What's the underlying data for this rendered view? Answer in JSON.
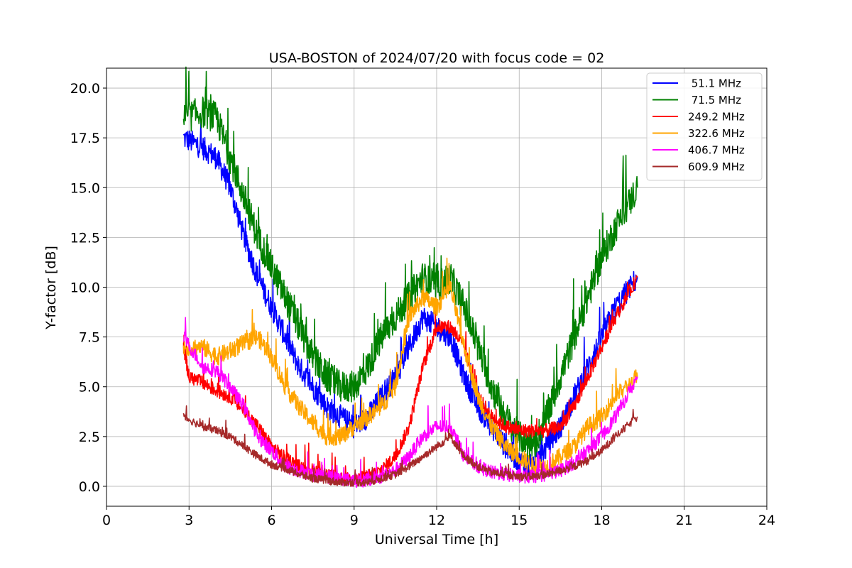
{
  "chart_data": {
    "type": "line",
    "title": "USA-BOSTON of 2024/07/20 with focus code = 02",
    "xlabel": "Universal Time [h]",
    "ylabel": "Y-factor [dB]",
    "xlim": [
      0,
      24
    ],
    "ylim": [
      -1,
      21
    ],
    "xticks": [
      0,
      3,
      6,
      9,
      12,
      15,
      18,
      21,
      24
    ],
    "xtick_labels": [
      "0",
      "3",
      "6",
      "9",
      "12",
      "15",
      "18",
      "21",
      "24"
    ],
    "yticks": [
      0,
      2.5,
      5,
      7.5,
      10,
      12.5,
      15,
      17.5,
      20
    ],
    "ytick_labels": [
      "0.0",
      "2.5",
      "5.0",
      "7.5",
      "10.0",
      "12.5",
      "15.0",
      "17.5",
      "20.0"
    ],
    "grid": true,
    "legend_position": "top-right",
    "series": [
      {
        "name": " 51.1 MHz",
        "color": "#0000ff",
        "noise": 0.6,
        "x": [
          2.8,
          3.5,
          4.0,
          4.5,
          5.0,
          5.5,
          6.0,
          6.5,
          7.0,
          7.5,
          8.0,
          8.5,
          9.0,
          9.5,
          10.0,
          10.5,
          11.0,
          11.5,
          12.0,
          12.5,
          13.0,
          13.5,
          14.0,
          14.5,
          15.0,
          15.5,
          16.0,
          16.5,
          17.0,
          17.5,
          18.0,
          18.5,
          19.3
        ],
        "y": [
          17.5,
          17.0,
          16.5,
          15.0,
          12.5,
          10.5,
          9.0,
          7.5,
          6.0,
          5.0,
          4.0,
          3.5,
          3.0,
          3.5,
          4.5,
          5.5,
          7.0,
          8.5,
          8.0,
          7.5,
          5.5,
          4.0,
          3.0,
          2.0,
          1.2,
          1.0,
          2.0,
          3.0,
          4.5,
          6.0,
          7.5,
          9.0,
          10.5
        ]
      },
      {
        "name": " 71.5 MHz",
        "color": "#008000",
        "noise": 0.8,
        "x": [
          2.8,
          3.5,
          4.0,
          4.5,
          5.0,
          5.5,
          6.0,
          6.5,
          7.0,
          7.5,
          8.0,
          8.5,
          9.0,
          9.5,
          10.0,
          10.5,
          11.0,
          11.5,
          12.0,
          12.5,
          13.0,
          13.5,
          14.0,
          14.5,
          15.0,
          15.5,
          16.0,
          16.5,
          17.0,
          17.5,
          18.0,
          18.5,
          19.3
        ],
        "y": [
          18.5,
          18.8,
          18.5,
          16.5,
          14.5,
          12.5,
          11.0,
          9.5,
          8.0,
          6.5,
          5.5,
          5.0,
          5.0,
          6.0,
          7.5,
          8.5,
          9.5,
          10.5,
          10.0,
          10.5,
          9.0,
          7.0,
          5.0,
          3.5,
          2.5,
          2.0,
          3.5,
          5.5,
          7.5,
          9.5,
          11.5,
          13.0,
          15.0
        ]
      },
      {
        "name": "249.2 MHz",
        "color": "#ff0000",
        "noise": 0.35,
        "x": [
          2.8,
          3.0,
          3.5,
          4.0,
          4.5,
          5.0,
          5.5,
          6.0,
          6.5,
          7.0,
          7.5,
          8.0,
          8.5,
          9.0,
          9.5,
          10.0,
          10.5,
          11.0,
          11.5,
          12.0,
          12.5,
          13.0,
          13.5,
          14.0,
          14.5,
          15.0,
          15.5,
          16.0,
          16.5,
          17.0,
          17.5,
          18.0,
          18.5,
          19.3
        ],
        "y": [
          7.0,
          5.5,
          5.2,
          4.8,
          4.5,
          3.8,
          3.0,
          2.0,
          1.4,
          1.0,
          0.8,
          0.6,
          0.4,
          0.3,
          0.5,
          0.8,
          1.5,
          3.0,
          6.0,
          8.0,
          8.0,
          7.0,
          4.5,
          3.5,
          3.0,
          2.8,
          2.8,
          2.8,
          3.0,
          4.0,
          5.5,
          7.0,
          8.5,
          10.5
        ]
      },
      {
        "name": "322.6 MHz",
        "color": "#ffa500",
        "noise": 0.45,
        "x": [
          2.8,
          3.5,
          4.0,
          4.5,
          5.0,
          5.5,
          6.0,
          6.5,
          7.0,
          7.5,
          8.0,
          8.5,
          9.0,
          9.5,
          10.0,
          10.5,
          11.0,
          11.5,
          12.0,
          12.5,
          13.0,
          13.5,
          14.0,
          14.5,
          15.0,
          15.5,
          16.0,
          16.5,
          17.0,
          17.5,
          18.0,
          18.5,
          19.3
        ],
        "y": [
          7.0,
          7.0,
          6.5,
          6.8,
          7.2,
          7.5,
          6.5,
          5.0,
          4.0,
          3.2,
          2.5,
          2.5,
          3.0,
          3.5,
          4.0,
          5.0,
          8.5,
          9.5,
          9.0,
          10.0,
          7.0,
          4.5,
          3.0,
          2.0,
          1.5,
          1.0,
          1.0,
          1.5,
          2.0,
          3.0,
          3.5,
          4.5,
          5.5
        ]
      },
      {
        "name": "406.7 MHz",
        "color": "#ff00ff",
        "noise": 0.35,
        "x": [
          2.8,
          3.5,
          4.0,
          4.5,
          5.0,
          5.5,
          6.0,
          6.5,
          7.0,
          7.5,
          8.0,
          8.5,
          9.0,
          9.5,
          10.0,
          10.5,
          11.0,
          11.5,
          12.0,
          12.5,
          13.0,
          13.5,
          14.0,
          14.5,
          15.0,
          15.5,
          16.0,
          16.5,
          17.0,
          17.5,
          18.0,
          18.5,
          19.3
        ],
        "y": [
          7.5,
          6.0,
          5.8,
          5.0,
          4.0,
          2.5,
          1.8,
          1.0,
          0.8,
          0.6,
          0.5,
          0.4,
          0.3,
          0.3,
          0.5,
          0.8,
          1.5,
          2.5,
          3.0,
          3.0,
          1.5,
          1.0,
          0.7,
          0.6,
          0.5,
          0.5,
          0.6,
          0.8,
          1.2,
          1.8,
          2.5,
          3.5,
          5.5
        ]
      },
      {
        "name": "609.9 MHz",
        "color": "#a52a2a",
        "noise": 0.2,
        "x": [
          2.8,
          3.5,
          4.0,
          4.5,
          5.0,
          5.5,
          6.0,
          6.5,
          7.0,
          7.5,
          8.0,
          8.5,
          9.0,
          9.5,
          10.0,
          10.5,
          11.0,
          11.5,
          12.0,
          12.5,
          13.0,
          13.5,
          14.0,
          14.5,
          15.0,
          15.5,
          16.0,
          16.5,
          17.0,
          17.5,
          18.0,
          18.5,
          19.3
        ],
        "y": [
          3.5,
          3.0,
          2.8,
          2.5,
          2.0,
          1.5,
          1.1,
          0.9,
          0.6,
          0.4,
          0.3,
          0.2,
          0.2,
          0.2,
          0.4,
          0.6,
          1.0,
          1.5,
          2.0,
          2.5,
          1.5,
          1.0,
          0.7,
          0.6,
          0.5,
          0.5,
          0.6,
          0.8,
          1.0,
          1.3,
          1.8,
          2.5,
          3.5
        ]
      }
    ]
  }
}
